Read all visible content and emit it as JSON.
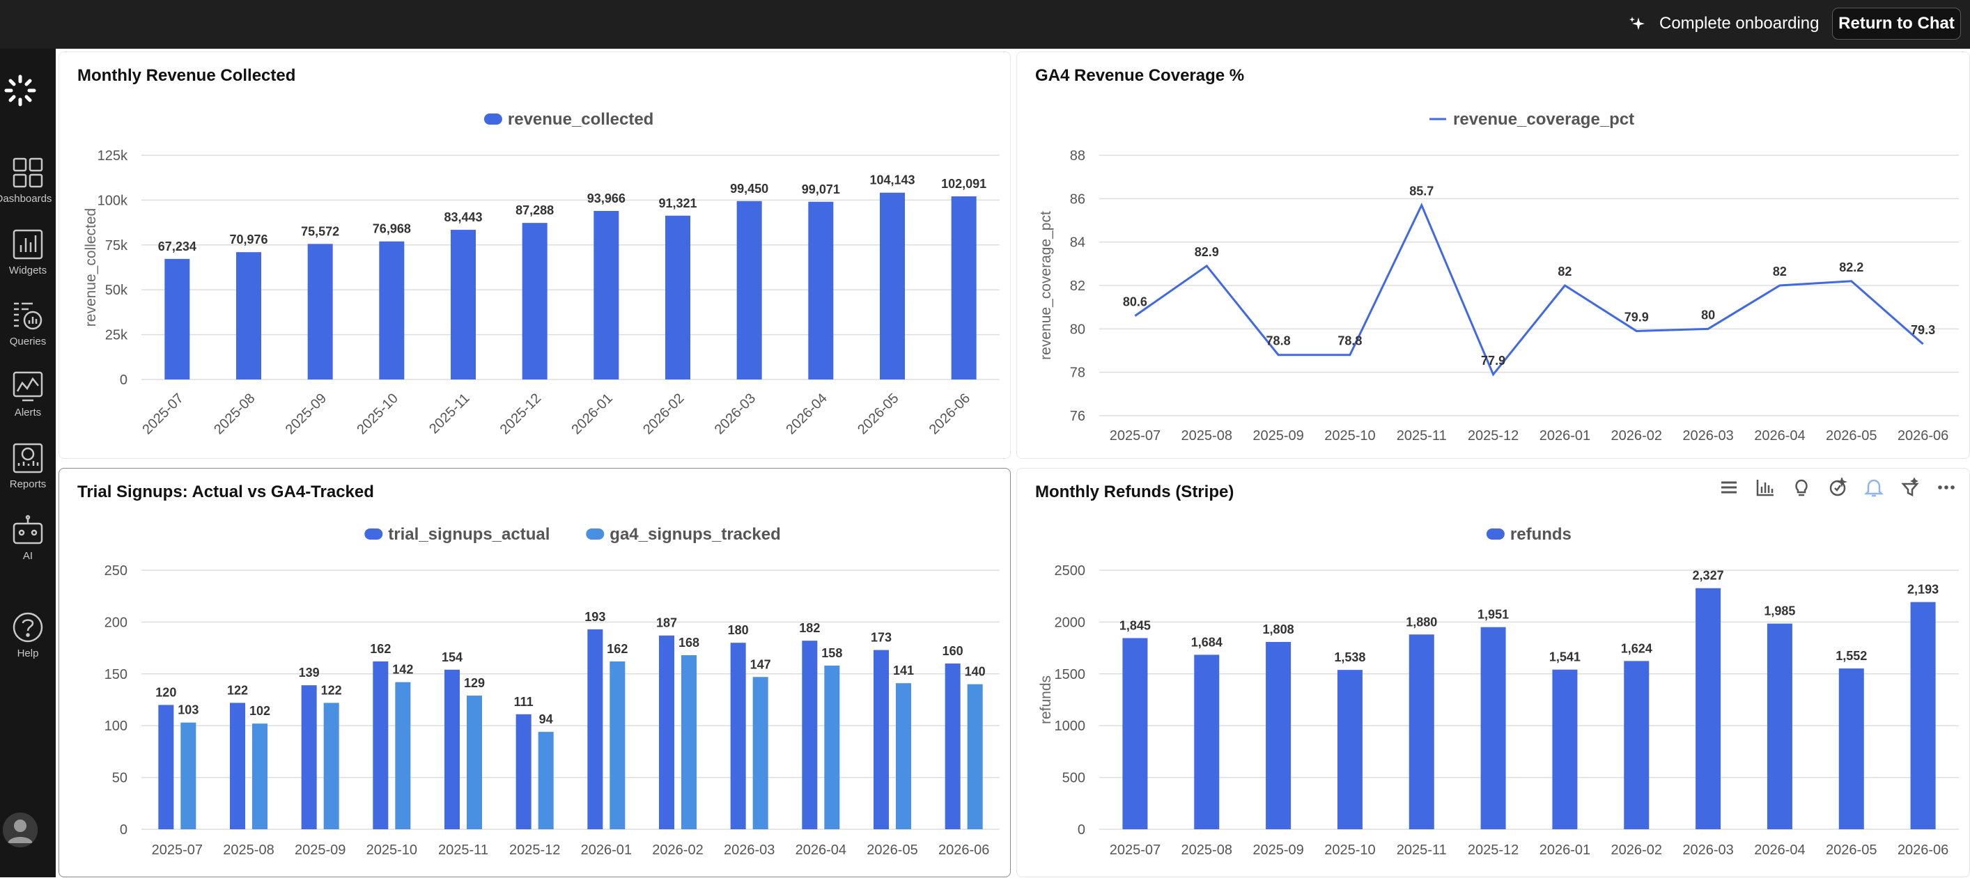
{
  "topbar": {
    "onboarding_label": "Complete onboarding",
    "return_label": "Return to Chat"
  },
  "sidebar": {
    "items": [
      {
        "label": "Dashboards",
        "icon": "dashboards-icon"
      },
      {
        "label": "Widgets",
        "icon": "widgets-icon"
      },
      {
        "label": "Queries",
        "icon": "queries-icon"
      },
      {
        "label": "Alerts",
        "icon": "alerts-icon"
      },
      {
        "label": "Reports",
        "icon": "reports-icon"
      },
      {
        "label": "AI",
        "icon": "ai-icon"
      },
      {
        "label": "Help",
        "icon": "help-icon"
      }
    ]
  },
  "colors": {
    "primary": "#4169E1",
    "secondary": "#4A90E2",
    "topbar": "#1f1f1f",
    "sidebar": "#161616"
  },
  "panels": {
    "revenue": {
      "title": "Monthly Revenue Collected"
    },
    "coverage": {
      "title": "GA4 Revenue Coverage %"
    },
    "signups": {
      "title": "Trial Signups: Actual vs GA4-Tracked"
    },
    "refunds": {
      "title": "Monthly Refunds (Stripe)"
    }
  },
  "refunds_toolbar": [
    "list-icon",
    "bar-chart-icon",
    "lightbulb-icon",
    "sparkle-icon",
    "alert-bell-icon",
    "filter-icon",
    "more-icon"
  ],
  "chart_data": [
    {
      "type": "bar",
      "title": "Monthly Revenue Collected",
      "categories": [
        "2025-07",
        "2025-08",
        "2025-09",
        "2025-10",
        "2025-11",
        "2025-12",
        "2026-01",
        "2026-02",
        "2026-03",
        "2026-04",
        "2026-05",
        "2026-06"
      ],
      "series": [
        {
          "name": "revenue_collected",
          "values": [
            67234,
            70976,
            75572,
            76968,
            83443,
            87288,
            93966,
            91321,
            99450,
            99071,
            104143,
            102091
          ],
          "labels": [
            "67,234",
            "70,976",
            "75,572",
            "76,968",
            "83,443",
            "87,288",
            "93,966",
            "91,321",
            "99,450",
            "99,071",
            "104,143",
            "102,091"
          ]
        }
      ],
      "ylabel": "revenue_collected",
      "ylim": [
        0,
        125000
      ],
      "yticks": [
        0,
        25000,
        50000,
        75000,
        100000,
        125000
      ],
      "ytick_labels": [
        "0",
        "25k",
        "50k",
        "75k",
        "100k",
        "125k"
      ],
      "legend": "top-center",
      "grid": true
    },
    {
      "type": "line",
      "title": "GA4 Revenue Coverage %",
      "categories": [
        "2025-07",
        "2025-08",
        "2025-09",
        "2025-10",
        "2025-11",
        "2025-12",
        "2026-01",
        "2026-02",
        "2026-03",
        "2026-04",
        "2026-05",
        "2026-06"
      ],
      "series": [
        {
          "name": "revenue_coverage_pct",
          "values": [
            80.6,
            82.9,
            78.8,
            78.8,
            85.7,
            77.9,
            82,
            79.9,
            80,
            82,
            82.2,
            79.3
          ],
          "labels": [
            "80.6",
            "82.9",
            "78.8",
            "78.8",
            "85.7",
            "77.9",
            "82",
            "79.9",
            "80",
            "82",
            "82.2",
            "79.3"
          ]
        }
      ],
      "ylabel": "revenue_coverage_pct",
      "ylim": [
        76,
        88
      ],
      "yticks": [
        76,
        78,
        80,
        82,
        84,
        86,
        88
      ],
      "ytick_labels": [
        "76",
        "78",
        "80",
        "82",
        "84",
        "86",
        "88"
      ],
      "legend": "top-center",
      "grid": true
    },
    {
      "type": "bar",
      "title": "Trial Signups: Actual vs GA4-Tracked",
      "categories": [
        "2025-07",
        "2025-08",
        "2025-09",
        "2025-10",
        "2025-11",
        "2025-12",
        "2026-01",
        "2026-02",
        "2026-03",
        "2026-04",
        "2026-05",
        "2026-06"
      ],
      "series": [
        {
          "name": "trial_signups_actual",
          "values": [
            120,
            122,
            139,
            162,
            154,
            111,
            193,
            187,
            180,
            182,
            173,
            160
          ],
          "labels": [
            "120",
            "122",
            "139",
            "162",
            "154",
            "111",
            "193",
            "187",
            "180",
            "182",
            "173",
            "160"
          ]
        },
        {
          "name": "ga4_signups_tracked",
          "values": [
            103,
            102,
            122,
            142,
            129,
            94,
            162,
            168,
            147,
            158,
            141,
            140
          ],
          "labels": [
            "103",
            "102",
            "122",
            "142",
            "129",
            "94",
            "162",
            "168",
            "147",
            "158",
            "141",
            "140"
          ]
        }
      ],
      "ylabel": "",
      "ylim": [
        0,
        250
      ],
      "yticks": [
        0,
        50,
        100,
        150,
        200,
        250
      ],
      "ytick_labels": [
        "0",
        "50",
        "100",
        "150",
        "200",
        "250"
      ],
      "legend": "top-center",
      "grid": true
    },
    {
      "type": "bar",
      "title": "Monthly Refunds (Stripe)",
      "categories": [
        "2025-07",
        "2025-08",
        "2025-09",
        "2025-10",
        "2025-11",
        "2025-12",
        "2026-01",
        "2026-02",
        "2026-03",
        "2026-04",
        "2026-05",
        "2026-06"
      ],
      "series": [
        {
          "name": "refunds",
          "values": [
            1845,
            1684,
            1808,
            1538,
            1880,
            1951,
            1541,
            1624,
            2327,
            1985,
            1552,
            2193
          ],
          "labels": [
            "1,845",
            "1,684",
            "1,808",
            "1,538",
            "1,880",
            "1,951",
            "1,541",
            "1,624",
            "2,327",
            "1,985",
            "1,552",
            "2,193"
          ]
        }
      ],
      "ylabel": "refunds",
      "ylim": [
        0,
        2500
      ],
      "yticks": [
        0,
        500,
        1000,
        1500,
        2000,
        2500
      ],
      "ytick_labels": [
        "0",
        "500",
        "1000",
        "1500",
        "2000",
        "2500"
      ],
      "legend": "top-center",
      "grid": true
    }
  ]
}
